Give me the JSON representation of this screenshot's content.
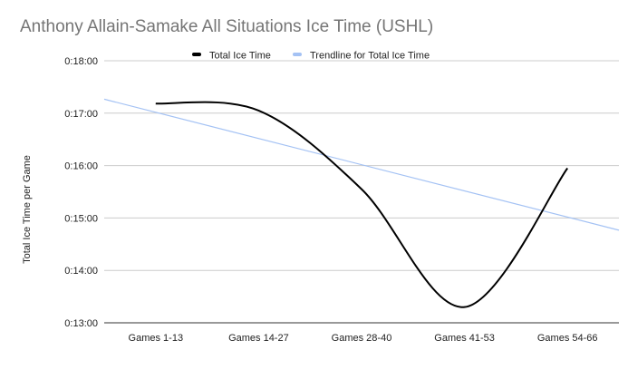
{
  "chart_data": {
    "type": "line",
    "title": "Anthony Allain-Samake All Situations Ice Time (USHL)",
    "xlabel": "",
    "ylabel": "Total Ice Time per Game",
    "categories": [
      "Games 1-13",
      "Games 14-27",
      "Games 28-40",
      "Games 41-53",
      "Games 54-66"
    ],
    "ylim": [
      780,
      1080
    ],
    "yticks": [
      {
        "value": 780,
        "label": "0:13:00"
      },
      {
        "value": 840,
        "label": "0:14:00"
      },
      {
        "value": 900,
        "label": "0:15:00"
      },
      {
        "value": 960,
        "label": "0:16:00"
      },
      {
        "value": 1020,
        "label": "0:17:00"
      },
      {
        "value": 1080,
        "label": "0:18:00"
      }
    ],
    "grid": true,
    "legend_position": "top",
    "series": [
      {
        "name": "Total Ice Time",
        "values": [
          1031,
          1023,
          933,
          798,
          957
        ],
        "color": "#000000",
        "curve": "smooth"
      },
      {
        "name": "Trendline for Total Ice Time",
        "values": [
          1021,
          991,
          961,
          931,
          901
        ],
        "color": "#a4c2f4",
        "trendline": true
      }
    ]
  }
}
